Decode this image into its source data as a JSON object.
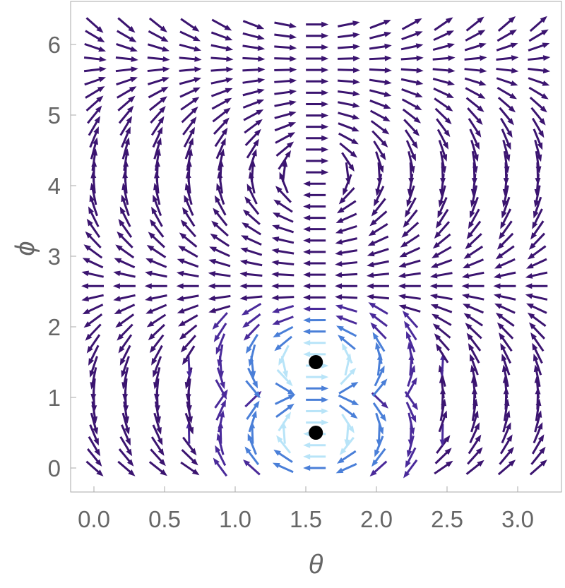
{
  "chart_data": {
    "type": "vector-field",
    "x_label": "θ",
    "y_label": "ϕ",
    "xlim": [
      -0.165,
      3.31
    ],
    "ylim": [
      -0.34,
      6.61
    ],
    "xticks": [
      {
        "value": 0,
        "label": "0.0"
      },
      0.5,
      {
        "value": 1,
        "label": "1.0"
      },
      1.5,
      {
        "value": 2,
        "label": "2.0"
      },
      2.5,
      {
        "value": 3,
        "label": "3.0"
      }
    ],
    "yticks": [
      0,
      1,
      2,
      3,
      4,
      5,
      6
    ],
    "points": {
      "color": "#000000",
      "x": [
        1.571,
        1.571
      ],
      "y": [
        0.5,
        1.5
      ]
    }
  }
}
